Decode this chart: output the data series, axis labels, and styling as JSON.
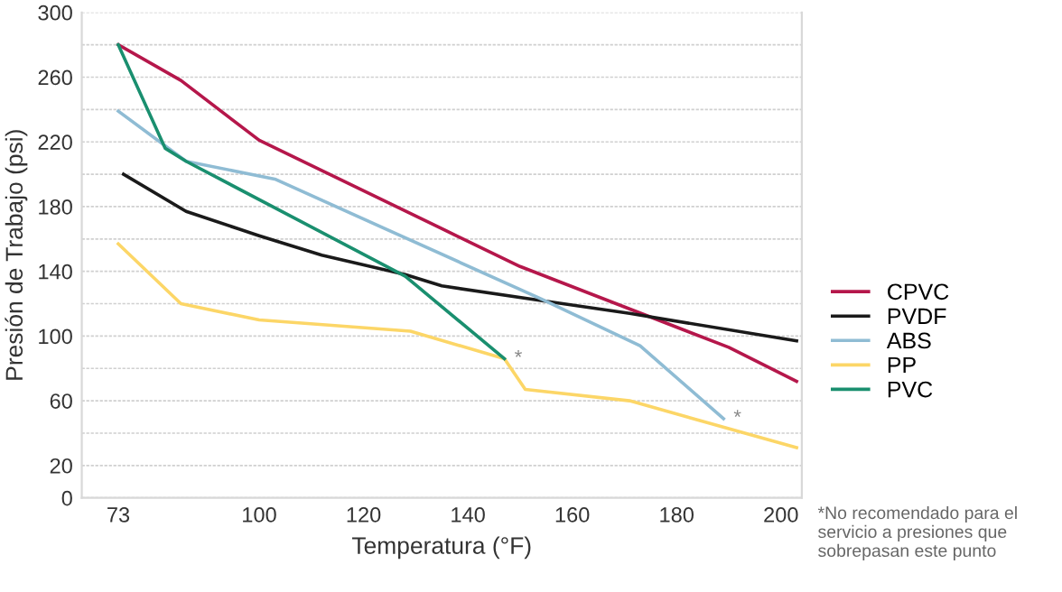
{
  "chart_data": {
    "type": "line",
    "xlabel": "Temperatura (°F)",
    "ylabel": "Presión de Trabajo (psi)",
    "xlim": [
      66,
      204
    ],
    "xticks": [
      73,
      100,
      120,
      140,
      160,
      180,
      200
    ],
    "ylim": [
      0,
      300
    ],
    "yticks": [
      0,
      20,
      {
        "value": 40,
        "label": null
      },
      60,
      {
        "value": 80,
        "label": null
      },
      100,
      {
        "value": 120,
        "label": null
      },
      140,
      {
        "value": 160,
        "label": null
      },
      180,
      {
        "value": 200,
        "label": null
      },
      220,
      {
        "value": 240,
        "label": null
      },
      260,
      {
        "value": 280,
        "label": null
      },
      300
    ],
    "grid": "y",
    "legend": "right",
    "marker": "none",
    "line_style": "solid",
    "series": [
      {
        "name": "CPVC",
        "color": "#b5174b",
        "x": [
          73,
          85,
          100,
          150,
          190,
          203
        ],
        "values": [
          280,
          258,
          221,
          143,
          93,
          72
        ]
      },
      {
        "name": "PVDF",
        "color": "#1a1a1a",
        "x": [
          74,
          86,
          100,
          112,
          128,
          135,
          154,
          171,
          203
        ],
        "values": [
          200,
          177,
          162,
          150,
          138,
          131,
          122,
          114,
          97
        ]
      },
      {
        "name": "ABS",
        "color": "#8fbcd4",
        "x": [
          73,
          86,
          103,
          154,
          173,
          189
        ],
        "values": [
          239,
          208,
          197,
          123,
          94,
          49
        ]
      },
      {
        "name": "PP",
        "color": "#fcd667",
        "x": [
          73,
          85,
          100,
          129,
          147,
          151,
          171,
          203
        ],
        "values": [
          157,
          120,
          110,
          103,
          86,
          67,
          60,
          31
        ]
      },
      {
        "name": "PVC",
        "color": "#1a8f6f",
        "x": [
          73,
          82,
          86,
          128,
          147
        ],
        "values": [
          280,
          216,
          208,
          137,
          86
        ]
      }
    ],
    "annotations": [
      {
        "text": "*",
        "x": 147,
        "y": 86
      },
      {
        "text": "*",
        "x": 189,
        "y": 49
      },
      "*No recomendado para el servicio a presiones que sobrepasan este punto"
    ]
  }
}
